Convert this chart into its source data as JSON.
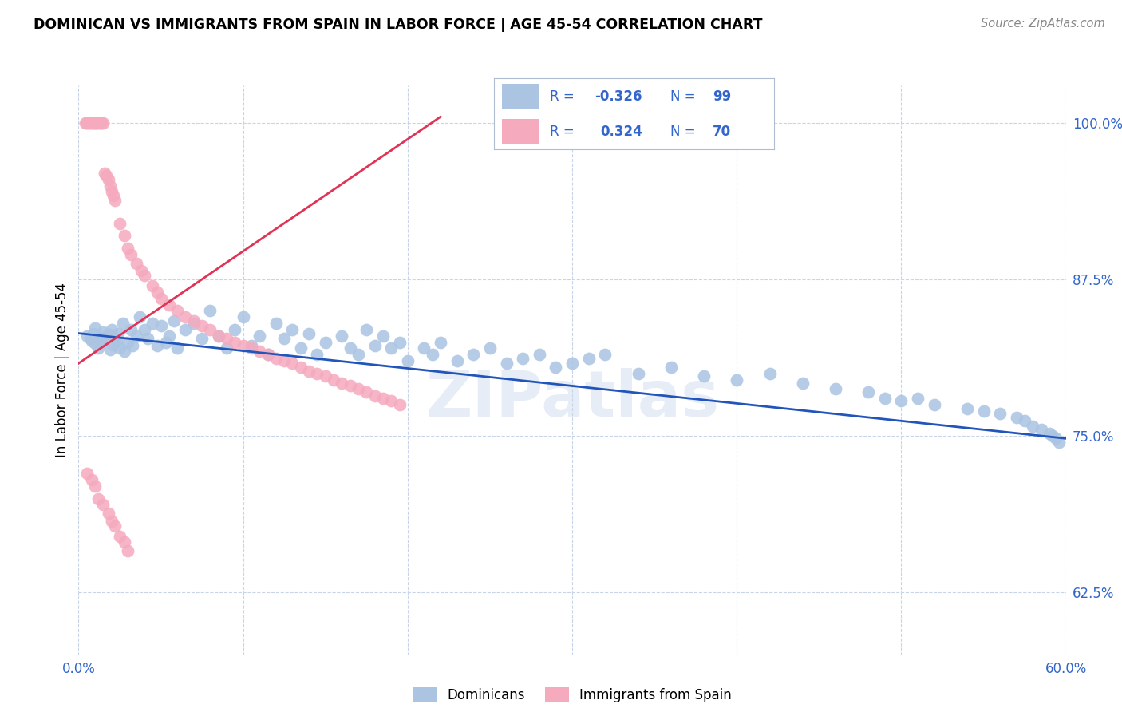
{
  "title": "DOMINICAN VS IMMIGRANTS FROM SPAIN IN LABOR FORCE | AGE 45-54 CORRELATION CHART",
  "source": "Source: ZipAtlas.com",
  "ylabel": "In Labor Force | Age 45-54",
  "xlim": [
    0.0,
    0.6
  ],
  "ylim": [
    0.575,
    1.03
  ],
  "ytick_positions": [
    0.625,
    0.75,
    0.875,
    1.0
  ],
  "ytick_labels": [
    "62.5%",
    "75.0%",
    "87.5%",
    "100.0%"
  ],
  "blue_color": "#aac4e2",
  "pink_color": "#f5aabe",
  "blue_line_color": "#2255bb",
  "pink_line_color": "#e03355",
  "watermark": "ZIPatlas",
  "blue_trend": [
    0.0,
    0.6,
    0.832,
    0.748
  ],
  "pink_trend": [
    0.0,
    0.22,
    0.808,
    1.005
  ],
  "blue_x": [
    0.005,
    0.007,
    0.008,
    0.009,
    0.01,
    0.01,
    0.012,
    0.013,
    0.014,
    0.015,
    0.016,
    0.017,
    0.018,
    0.019,
    0.02,
    0.021,
    0.022,
    0.023,
    0.024,
    0.025,
    0.027,
    0.028,
    0.03,
    0.032,
    0.033,
    0.035,
    0.037,
    0.04,
    0.042,
    0.045,
    0.048,
    0.05,
    0.053,
    0.055,
    0.058,
    0.06,
    0.065,
    0.07,
    0.075,
    0.08,
    0.085,
    0.09,
    0.095,
    0.1,
    0.105,
    0.11,
    0.115,
    0.12,
    0.125,
    0.13,
    0.135,
    0.14,
    0.145,
    0.15,
    0.16,
    0.165,
    0.17,
    0.175,
    0.18,
    0.185,
    0.19,
    0.195,
    0.2,
    0.21,
    0.215,
    0.22,
    0.23,
    0.24,
    0.25,
    0.26,
    0.27,
    0.28,
    0.29,
    0.3,
    0.31,
    0.32,
    0.34,
    0.36,
    0.38,
    0.4,
    0.42,
    0.44,
    0.46,
    0.48,
    0.49,
    0.5,
    0.51,
    0.52,
    0.54,
    0.55,
    0.56,
    0.57,
    0.575,
    0.58,
    0.585,
    0.59,
    0.592,
    0.594,
    0.596
  ],
  "blue_y": [
    0.83,
    0.828,
    0.826,
    0.832,
    0.824,
    0.836,
    0.82,
    0.828,
    0.825,
    0.833,
    0.829,
    0.827,
    0.831,
    0.819,
    0.835,
    0.823,
    0.828,
    0.826,
    0.832,
    0.82,
    0.84,
    0.818,
    0.825,
    0.835,
    0.822,
    0.83,
    0.845,
    0.835,
    0.828,
    0.84,
    0.822,
    0.838,
    0.825,
    0.83,
    0.842,
    0.82,
    0.835,
    0.84,
    0.828,
    0.85,
    0.83,
    0.82,
    0.835,
    0.845,
    0.822,
    0.83,
    0.815,
    0.84,
    0.828,
    0.835,
    0.82,
    0.832,
    0.815,
    0.825,
    0.83,
    0.82,
    0.815,
    0.835,
    0.822,
    0.83,
    0.82,
    0.825,
    0.81,
    0.82,
    0.815,
    0.825,
    0.81,
    0.815,
    0.82,
    0.808,
    0.812,
    0.815,
    0.805,
    0.808,
    0.812,
    0.815,
    0.8,
    0.805,
    0.798,
    0.795,
    0.8,
    0.792,
    0.788,
    0.785,
    0.78,
    0.778,
    0.78,
    0.775,
    0.772,
    0.77,
    0.768,
    0.765,
    0.762,
    0.758,
    0.755,
    0.752,
    0.75,
    0.748,
    0.745
  ],
  "pink_x": [
    0.004,
    0.005,
    0.006,
    0.007,
    0.008,
    0.009,
    0.01,
    0.01,
    0.011,
    0.012,
    0.013,
    0.014,
    0.015,
    0.016,
    0.017,
    0.018,
    0.019,
    0.02,
    0.021,
    0.022,
    0.025,
    0.028,
    0.03,
    0.032,
    0.035,
    0.038,
    0.04,
    0.045,
    0.048,
    0.05,
    0.055,
    0.06,
    0.065,
    0.07,
    0.075,
    0.08,
    0.085,
    0.09,
    0.095,
    0.1,
    0.105,
    0.11,
    0.115,
    0.12,
    0.125,
    0.13,
    0.135,
    0.14,
    0.145,
    0.15,
    0.155,
    0.16,
    0.165,
    0.17,
    0.175,
    0.18,
    0.185,
    0.19,
    0.195,
    0.005,
    0.008,
    0.01,
    0.012,
    0.015,
    0.018,
    0.02,
    0.022,
    0.025,
    0.028,
    0.03
  ],
  "pink_y": [
    1.0,
    1.0,
    1.0,
    1.0,
    1.0,
    1.0,
    1.0,
    1.0,
    1.0,
    1.0,
    1.0,
    1.0,
    1.0,
    0.96,
    0.958,
    0.955,
    0.95,
    0.945,
    0.942,
    0.938,
    0.92,
    0.91,
    0.9,
    0.895,
    0.888,
    0.882,
    0.878,
    0.87,
    0.865,
    0.86,
    0.855,
    0.85,
    0.845,
    0.842,
    0.838,
    0.835,
    0.83,
    0.828,
    0.825,
    0.822,
    0.82,
    0.818,
    0.815,
    0.812,
    0.81,
    0.808,
    0.805,
    0.802,
    0.8,
    0.798,
    0.795,
    0.792,
    0.79,
    0.788,
    0.785,
    0.782,
    0.78,
    0.778,
    0.775,
    0.72,
    0.715,
    0.71,
    0.7,
    0.695,
    0.688,
    0.682,
    0.678,
    0.67,
    0.665,
    0.658
  ]
}
